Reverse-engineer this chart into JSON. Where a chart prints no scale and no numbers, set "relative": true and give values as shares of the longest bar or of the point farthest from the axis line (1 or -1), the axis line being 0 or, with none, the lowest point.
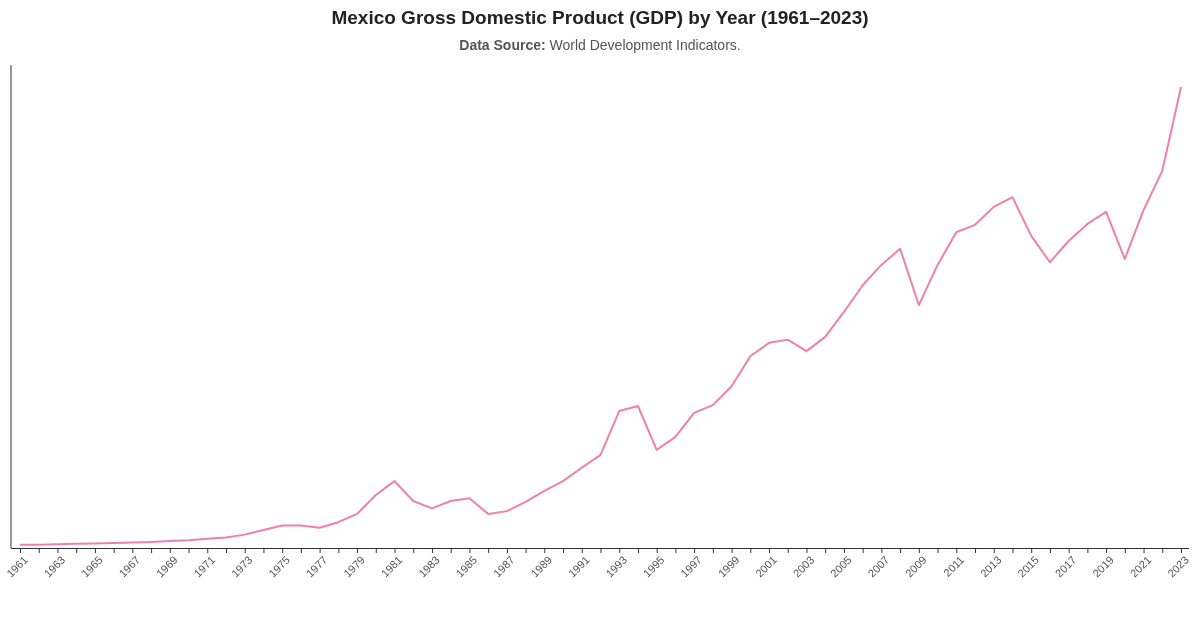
{
  "chart_data": {
    "type": "line",
    "title": "Mexico Gross Domestic Product (GDP) by Year (1961–2023)",
    "subtitle": "Data Source: World Development Indicators.",
    "relative": true,
    "marker": "none",
    "line_style": "solid",
    "categories": [
      "1961",
      null,
      "1963",
      null,
      "1965",
      null,
      "1967",
      null,
      "1969",
      null,
      "1971",
      null,
      "1973",
      null,
      "1975",
      null,
      "1977",
      null,
      "1979",
      null,
      "1981",
      null,
      "1983",
      null,
      "1985",
      null,
      "1987",
      null,
      "1989",
      null,
      "1991",
      null,
      "1993",
      null,
      "1995",
      null,
      "1997",
      null,
      "1999",
      null,
      "2001",
      null,
      "2003",
      null,
      "2005",
      null,
      "2007",
      null,
      "2009",
      null,
      "2011",
      null,
      "2013",
      null,
      "2015",
      null,
      "2017",
      null,
      "2019",
      null,
      "2021",
      null,
      "2023"
    ],
    "series": [
      {
        "color": "#f07fab",
        "values": [
          0.007,
          0.007,
          0.008,
          0.009,
          0.01,
          0.011,
          0.012,
          0.013,
          0.015,
          0.017,
          0.02,
          0.023,
          0.029,
          0.039,
          0.049,
          0.049,
          0.044,
          0.056,
          0.074,
          0.115,
          0.145,
          0.102,
          0.086,
          0.102,
          0.108,
          0.074,
          0.08,
          0.1,
          0.124,
          0.145,
          0.174,
          0.202,
          0.297,
          0.308,
          0.213,
          0.241,
          0.293,
          0.31,
          0.351,
          0.416,
          0.445,
          0.452,
          0.427,
          0.458,
          0.512,
          0.57,
          0.614,
          0.649,
          0.527,
          0.614,
          0.685,
          0.701,
          0.74,
          0.761,
          0.677,
          0.62,
          0.666,
          0.703,
          0.729,
          0.627,
          0.733,
          0.818,
          1
        ]
      }
    ]
  }
}
